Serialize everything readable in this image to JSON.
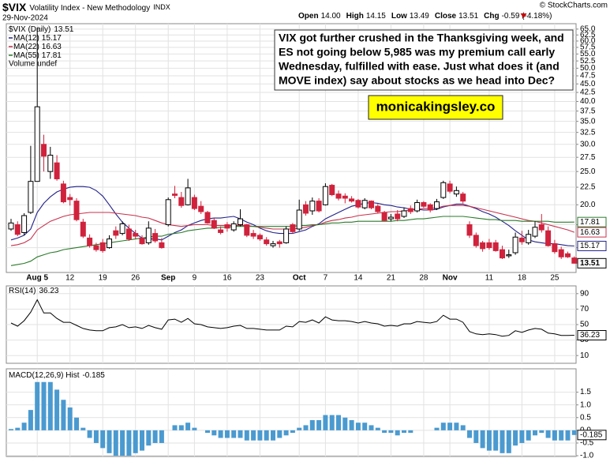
{
  "header": {
    "symbol": "$VIX",
    "name": "Volatility Index - New Methodology",
    "exchange": "INDX",
    "date": "29-Nov-2024",
    "quote": [
      [
        "Open",
        "14.00"
      ],
      [
        "High",
        "14.15"
      ],
      [
        "Low",
        "13.49"
      ],
      [
        "Close",
        "13.51"
      ],
      [
        "Chg",
        "-0.59 (-4.18%)"
      ]
    ],
    "copyright": "© StockCharts.com"
  },
  "annotation": [
    "VIX got further crushed in the Thanksgiving week, and",
    "ES not going below 5,985 was my premium call early",
    "Wednesday, fulfilled with ease. Just what does it (and",
    "MOVE index) say about stocks as we head into Dec?"
  ],
  "watermark": "monicakingsley.co",
  "chart_data": [
    {
      "type": "candlestick",
      "name": "$VIX (Daily)",
      "log_scale": true,
      "grid": true,
      "up_color": "#000000",
      "down_color": "#d0223c",
      "legend": "upper left",
      "volume_label": "Volume undef",
      "xticks": [
        {
          "value": 4,
          "label": "Aug 5"
        },
        {
          "value": 9,
          "label": "12"
        },
        {
          "value": 14,
          "label": "19"
        },
        {
          "value": 19,
          "label": "26"
        },
        {
          "value": 24,
          "label": "Sep"
        },
        {
          "value": 28,
          "label": "9"
        },
        {
          "value": 33,
          "label": "16"
        },
        {
          "value": 38,
          "label": "23"
        },
        {
          "value": 44,
          "label": "Oct"
        },
        {
          "value": 48,
          "label": "7"
        },
        {
          "value": 53,
          "label": "14"
        },
        {
          "value": 58,
          "label": "21"
        },
        {
          "value": 63,
          "label": "28"
        },
        {
          "value": 67,
          "label": "Nov"
        },
        {
          "value": 73,
          "label": "11"
        },
        {
          "value": 78,
          "label": "18"
        },
        {
          "value": 83,
          "label": "25"
        }
      ],
      "ylim": [
        12.7,
        67.4
      ],
      "yticks": [
        {
          "value": 15,
          "label": "15.0"
        },
        17.5,
        {
          "value": 20,
          "label": "20.0"
        },
        22.5,
        {
          "value": 25,
          "label": "25.0"
        },
        27.5,
        {
          "value": 30,
          "label": "30.0"
        },
        32.5,
        {
          "value": 35,
          "label": "35.0"
        },
        37.5,
        {
          "value": 40,
          "label": "40.0"
        },
        42.5,
        {
          "value": 45,
          "label": "45.0"
        },
        47.5,
        {
          "value": 50,
          "label": "50.0"
        },
        52.5,
        {
          "value": 55,
          "label": "55.0"
        },
        57.5,
        {
          "value": 60,
          "label": "60.0"
        },
        62.5,
        {
          "value": 65,
          "label": "65.0"
        }
      ],
      "open": [
        17.0,
        17.5,
        16.6,
        19.0,
        23.4,
        30.0,
        25.0,
        26.5,
        23.0,
        21.0,
        20.5,
        17.8,
        16.0,
        15.2,
        15.5,
        15.0,
        16.8,
        16.5,
        17.0,
        16.5,
        16.0,
        15.5,
        16.5,
        15.5,
        17.5,
        21.5,
        21.0,
        20.0,
        21.0,
        19.8,
        19.0,
        18.0,
        16.9,
        17.5,
        16.9,
        17.5,
        17.5,
        16.5,
        16.3,
        15.8,
        15.2,
        15.6,
        15.5,
        17.5,
        17.0,
        20.0,
        19.2,
        20.5,
        20.0,
        22.8,
        21.5,
        21.2,
        20.8,
        20.6,
        19.6,
        20.5,
        19.8,
        19.0,
        18.2,
        18.8,
        18.5,
        19.5,
        19.2,
        20.3,
        20.0,
        19.5,
        21.0,
        23.0,
        21.5,
        21.5,
        17.5,
        16.3,
        15.5,
        15.5,
        15.5,
        14.8,
        14.2,
        14.5,
        16.0,
        15.5,
        16.2,
        17.5,
        16.8,
        15.4,
        14.8,
        14.4,
        14.0
      ],
      "high": [
        18.2,
        17.9,
        18.9,
        29.7,
        65.7,
        32.0,
        29.5,
        27.9,
        23.5,
        21.5,
        20.9,
        18.2,
        16.4,
        15.5,
        15.9,
        16.3,
        17.3,
        17.9,
        17.5,
        16.9,
        16.3,
        17.9,
        17.0,
        16.0,
        21.0,
        22.7,
        21.8,
        23.8,
        21.4,
        20.5,
        19.2,
        18.3,
        17.3,
        17.8,
        17.9,
        19.4,
        17.6,
        16.9,
        16.5,
        16.1,
        15.7,
        15.8,
        17.3,
        17.7,
        20.7,
        20.5,
        21.0,
        20.9,
        23.1,
        23.0,
        22.0,
        21.6,
        21.2,
        20.8,
        20.9,
        20.6,
        20.1,
        19.2,
        18.8,
        19.3,
        19.6,
        19.9,
        20.7,
        20.5,
        20.2,
        20.8,
        23.5,
        23.5,
        22.6,
        21.8,
        17.9,
        16.6,
        15.7,
        15.9,
        15.8,
        15.2,
        14.8,
        16.6,
        16.8,
        16.9,
        17.9,
        18.8,
        17.3,
        15.8,
        15.1,
        14.6,
        14.15
      ],
      "low": [
        16.8,
        16.2,
        16.3,
        18.8,
        23.4,
        25.0,
        23.8,
        23.5,
        20.2,
        19.9,
        17.9,
        16.0,
        15.0,
        14.6,
        14.5,
        14.9,
        15.9,
        16.3,
        15.7,
        15.9,
        15.3,
        15.3,
        15.5,
        14.9,
        17.3,
        20.9,
        19.6,
        19.9,
        19.3,
        18.8,
        17.6,
        17.0,
        16.4,
        16.7,
        16.7,
        17.3,
        16.1,
        15.9,
        15.7,
        15.2,
        15.0,
        15.0,
        15.4,
        16.5,
        16.8,
        18.6,
        18.7,
        19.0,
        19.9,
        21.2,
        20.6,
        20.2,
        20.3,
        19.5,
        19.4,
        19.4,
        18.9,
        17.9,
        17.9,
        17.9,
        18.3,
        18.8,
        19.0,
        19.6,
        19.0,
        19.3,
        20.8,
        21.6,
        21.1,
        20.2,
        16.0,
        15.0,
        14.6,
        14.8,
        14.6,
        13.9,
        14.0,
        14.3,
        15.3,
        15.3,
        16.0,
        16.6,
        15.1,
        14.4,
        13.9,
        14.0,
        13.49
      ],
      "close": [
        17.7,
        16.4,
        18.6,
        23.4,
        38.6,
        27.7,
        27.9,
        23.8,
        20.4,
        20.7,
        18.1,
        16.2,
        15.2,
        14.8,
        14.7,
        15.9,
        16.3,
        17.6,
        15.9,
        16.2,
        15.4,
        17.1,
        15.7,
        15.0,
        20.7,
        21.3,
        19.9,
        22.4,
        19.5,
        19.1,
        17.7,
        17.1,
        16.6,
        17.1,
        17.6,
        18.2,
        16.3,
        16.2,
        15.9,
        15.4,
        15.4,
        15.4,
        17.0,
        16.7,
        19.3,
        18.9,
        20.5,
        19.2,
        22.6,
        21.4,
        20.9,
        20.9,
        20.5,
        19.7,
        20.6,
        19.6,
        19.1,
        18.0,
        18.4,
        18.2,
        19.2,
        19.1,
        20.3,
        19.8,
        19.3,
        20.4,
        23.2,
        21.9,
        22.0,
        20.5,
        16.3,
        15.2,
        14.9,
        15.0,
        14.7,
        14.0,
        14.3,
        16.1,
        15.6,
        16.4,
        17.2,
        16.9,
        15.2,
        14.6,
        14.1,
        14.1,
        13.51
      ],
      "series": [
        {
          "name": "MA(12)",
          "color": "#22228a",
          "values": [
            15.8,
            16.0,
            16.3,
            17.0,
            19.0,
            20.2,
            21.1,
            21.8,
            22.2,
            22.5,
            22.6,
            22.6,
            22.5,
            22.0,
            21.2,
            20.0,
            18.8,
            17.8,
            17.1,
            16.5,
            16.0,
            15.9,
            15.9,
            15.8,
            16.2,
            16.6,
            16.9,
            17.4,
            17.7,
            18.0,
            18.2,
            18.3,
            18.3,
            18.4,
            18.5,
            18.2,
            17.8,
            17.5,
            17.1,
            16.8,
            16.6,
            16.5,
            16.5,
            16.5,
            16.7,
            16.9,
            17.3,
            17.6,
            18.2,
            18.6,
            19.0,
            19.4,
            19.8,
            20.0,
            20.2,
            20.3,
            20.2,
            20.0,
            19.9,
            19.7,
            19.6,
            19.4,
            19.4,
            19.3,
            19.3,
            19.4,
            19.7,
            19.9,
            20.1,
            20.1,
            19.8,
            19.5,
            19.1,
            18.8,
            18.4,
            17.9,
            17.4,
            16.8,
            16.3,
            15.8,
            15.6,
            15.5,
            15.4,
            15.4,
            15.3,
            15.2,
            15.17
          ]
        },
        {
          "name": "MA(22)",
          "color": "#c8304c",
          "values": [
            15.2,
            15.3,
            15.5,
            15.9,
            16.9,
            17.4,
            17.9,
            18.2,
            18.5,
            18.7,
            18.8,
            18.9,
            19.0,
            19.0,
            19.0,
            19.0,
            18.9,
            18.8,
            18.7,
            18.6,
            18.4,
            18.3,
            18.0,
            17.7,
            17.5,
            17.4,
            17.3,
            17.4,
            17.5,
            17.5,
            17.5,
            17.4,
            17.4,
            17.4,
            17.4,
            17.4,
            17.4,
            17.3,
            17.2,
            17.1,
            17.0,
            17.0,
            17.0,
            17.0,
            17.1,
            17.2,
            17.4,
            17.5,
            17.8,
            18.0,
            18.1,
            18.3,
            18.4,
            18.6,
            18.7,
            18.8,
            18.9,
            19.0,
            19.1,
            19.1,
            19.2,
            19.3,
            19.4,
            19.5,
            19.5,
            19.6,
            19.8,
            19.9,
            19.9,
            19.9,
            19.8,
            19.6,
            19.4,
            19.2,
            19.0,
            18.8,
            18.6,
            18.4,
            18.2,
            18.0,
            17.9,
            17.7,
            17.5,
            17.3,
            17.1,
            16.9,
            16.63
          ]
        },
        {
          "name": "MA(55)",
          "color": "#2b7a2b",
          "values": [
            13.3,
            13.4,
            13.5,
            13.7,
            14.1,
            14.3,
            14.5,
            14.6,
            14.8,
            14.9,
            15.0,
            15.1,
            15.2,
            15.3,
            15.4,
            15.5,
            15.6,
            15.7,
            15.8,
            15.9,
            16.0,
            16.1,
            16.2,
            16.2,
            16.4,
            16.5,
            16.6,
            16.8,
            16.9,
            17.0,
            17.1,
            17.1,
            17.2,
            17.2,
            17.3,
            17.3,
            17.3,
            17.3,
            17.3,
            17.3,
            17.3,
            17.3,
            17.3,
            17.3,
            17.4,
            17.4,
            17.5,
            17.5,
            17.6,
            17.7,
            17.7,
            17.8,
            17.8,
            17.9,
            17.9,
            17.9,
            17.9,
            17.9,
            17.9,
            18.0,
            18.0,
            18.1,
            18.2,
            18.2,
            18.3,
            18.4,
            18.5,
            18.5,
            18.5,
            18.5,
            18.4,
            18.3,
            18.2,
            18.1,
            18.1,
            18.0,
            18.0,
            18.0,
            17.9,
            17.9,
            17.9,
            17.9,
            17.9,
            17.8,
            17.8,
            17.8,
            17.81
          ]
        }
      ]
    },
    {
      "type": "line",
      "name": "RSI(14)",
      "color": "#000000",
      "grid": true,
      "ylim": [
        0,
        100
      ],
      "yticks": [
        10,
        30,
        50,
        70,
        90
      ],
      "values": [
        52,
        48,
        55,
        66,
        82,
        65,
        65,
        58,
        53,
        53,
        49,
        45,
        43,
        42,
        42,
        46,
        47,
        50,
        46,
        47,
        45,
        49,
        46,
        44,
        56,
        57,
        53,
        58,
        51,
        50,
        47,
        46,
        45,
        46,
        48,
        49,
        45,
        45,
        44,
        43,
        43,
        43,
        48,
        47,
        54,
        53,
        56,
        52,
        60,
        56,
        55,
        55,
        54,
        52,
        54,
        52,
        51,
        48,
        49,
        48,
        51,
        51,
        54,
        53,
        52,
        54,
        62,
        57,
        57,
        53,
        41,
        38,
        37,
        38,
        37,
        35,
        36,
        42,
        40,
        43,
        45,
        44,
        39,
        38,
        36,
        36,
        36.23
      ]
    },
    {
      "type": "bar",
      "name": "MACD(12,26,9) Hist",
      "color": "#4a9ad0",
      "grid": true,
      "ylim": [
        -1.03,
        2.42
      ],
      "yticks": [
        {
          "value": -1,
          "label": "-1.0"
        },
        -0.5,
        {
          "value": 0,
          "label": "0.0"
        },
        0.5,
        {
          "value": 1,
          "label": "1.0"
        },
        1.5
      ],
      "values": [
        0.05,
        0.1,
        0.3,
        0.8,
        1.9,
        1.9,
        1.9,
        1.6,
        1.2,
        0.9,
        0.5,
        0.1,
        -0.3,
        -0.5,
        -0.7,
        -0.9,
        -1.0,
        -1.0,
        -1.0,
        -0.9,
        -0.8,
        -0.6,
        -0.5,
        -0.5,
        0.0,
        0.2,
        0.2,
        0.3,
        0.1,
        0.0,
        -0.1,
        -0.2,
        -0.3,
        -0.3,
        -0.3,
        -0.3,
        -0.4,
        -0.4,
        -0.4,
        -0.4,
        -0.4,
        -0.3,
        -0.2,
        -0.1,
        0.1,
        0.2,
        0.4,
        0.4,
        0.6,
        0.6,
        0.6,
        0.5,
        0.4,
        0.3,
        0.3,
        0.2,
        0.1,
        -0.1,
        -0.1,
        -0.2,
        -0.1,
        -0.1,
        0.0,
        0.0,
        0.0,
        0.1,
        0.3,
        0.3,
        0.3,
        0.2,
        -0.3,
        -0.5,
        -0.7,
        -0.8,
        -0.8,
        -0.9,
        -0.9,
        -0.6,
        -0.5,
        -0.4,
        -0.2,
        -0.1,
        -0.3,
        -0.4,
        -0.4,
        -0.4,
        -0.185
      ]
    }
  ]
}
